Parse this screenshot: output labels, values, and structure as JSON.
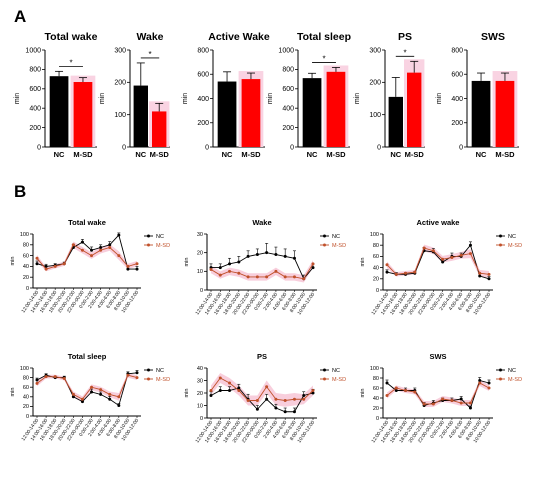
{
  "panels": {
    "a": "A",
    "b": "B"
  },
  "colors": {
    "nc": "#000000",
    "msd": "#ff0000",
    "msd_line": "#c0502a",
    "msd_band": "#f7c6d6",
    "msd_pale": "#f9d3e2"
  },
  "bar_categories": [
    "NC",
    "M-SD"
  ],
  "time_labels": [
    "12:00-14:00",
    "14:00-16:00",
    "16:00-18:00",
    "18:00-20:00",
    "20:00-22:00",
    "22:00-00:00",
    "0:00-2:00",
    "2:00-4:00",
    "4:00-6:00",
    "6:00-8:00",
    "8:00-10:00",
    "10:00-12:00"
  ],
  "chart_data": [
    {
      "type": "bar",
      "title": "Total wake",
      "ylabel": "min",
      "ylim": [
        0,
        1000
      ],
      "ticks": [
        0,
        200,
        400,
        600,
        800,
        1000
      ],
      "categories": [
        "NC",
        "M-SD"
      ],
      "values": [
        730,
        670
      ],
      "errors": [
        50,
        45
      ],
      "significance": "*"
    },
    {
      "type": "bar",
      "title": "Wake",
      "ylabel": "min",
      "ylim": [
        0,
        300
      ],
      "ticks": [
        0,
        100,
        200,
        300
      ],
      "categories": [
        "NC",
        "M-SD"
      ],
      "values": [
        190,
        110
      ],
      "errors": [
        70,
        25
      ],
      "significance": "*"
    },
    {
      "type": "bar",
      "title": "Active Wake",
      "ylabel": "min",
      "ylim": [
        0,
        800
      ],
      "ticks": [
        0,
        200,
        400,
        600,
        800
      ],
      "categories": [
        "NC",
        "M-SD"
      ],
      "values": [
        540,
        560
      ],
      "errors": [
        80,
        50
      ],
      "significance": ""
    },
    {
      "type": "bar",
      "title": "Total sleep",
      "ylabel": "min",
      "ylim": [
        0,
        1000
      ],
      "ticks": [
        0,
        200,
        400,
        600,
        800,
        1000
      ],
      "categories": [
        "NC",
        "M-SD"
      ],
      "values": [
        710,
        775
      ],
      "errors": [
        50,
        45
      ],
      "significance": "*"
    },
    {
      "type": "bar",
      "title": "PS",
      "ylabel": "min",
      "ylim": [
        0,
        300
      ],
      "ticks": [
        0,
        100,
        200,
        300
      ],
      "categories": [
        "NC",
        "M-SD"
      ],
      "values": [
        155,
        230
      ],
      "errors": [
        60,
        35
      ],
      "significance": "*"
    },
    {
      "type": "bar",
      "title": "SWS",
      "ylabel": "min",
      "ylim": [
        0,
        800
      ],
      "ticks": [
        0,
        200,
        400,
        600,
        800
      ],
      "categories": [
        "NC",
        "M-SD"
      ],
      "values": [
        545,
        545
      ],
      "errors": [
        65,
        65
      ],
      "significance": ""
    },
    {
      "type": "line",
      "title": "Total wake",
      "ylabel": "min",
      "ylim": [
        0,
        100
      ],
      "ticks": [
        0,
        20,
        40,
        60,
        80,
        100
      ],
      "legend": "top-right",
      "series": [
        {
          "name": "NC",
          "values": [
            45,
            40,
            42,
            45,
            75,
            85,
            70,
            75,
            80,
            98,
            35,
            35
          ],
          "errors": [
            5,
            4,
            3,
            3,
            6,
            5,
            6,
            5,
            6,
            4,
            4,
            5
          ]
        },
        {
          "name": "M-SD",
          "values": [
            55,
            35,
            40,
            45,
            80,
            70,
            60,
            70,
            75,
            60,
            40,
            45
          ],
          "errors": [
            6,
            4,
            4,
            4,
            6,
            6,
            6,
            6,
            6,
            8,
            5,
            5
          ]
        }
      ]
    },
    {
      "type": "line",
      "title": "Wake",
      "ylabel": "min",
      "ylim": [
        0,
        30
      ],
      "ticks": [
        0,
        10,
        20,
        30
      ],
      "legend": "top-right",
      "series": [
        {
          "name": "NC",
          "values": [
            12,
            12,
            14,
            15,
            18,
            19,
            20,
            19,
            18,
            17,
            6,
            12
          ],
          "errors": [
            2,
            2,
            3,
            3,
            3,
            3,
            5,
            4,
            4,
            4,
            2,
            2
          ]
        },
        {
          "name": "M-SD",
          "values": [
            11,
            8,
            10,
            9,
            7,
            7,
            7,
            10,
            7,
            7,
            6,
            14
          ],
          "errors": [
            2,
            2,
            2,
            2,
            2,
            2,
            2,
            2,
            2,
            2,
            2,
            2
          ]
        }
      ]
    },
    {
      "type": "line",
      "title": "Active wake",
      "ylabel": "min",
      "ylim": [
        0,
        100
      ],
      "ticks": [
        0,
        20,
        40,
        60,
        80,
        100
      ],
      "legend": "top-right",
      "series": [
        {
          "name": "NC",
          "values": [
            32,
            28,
            28,
            30,
            70,
            68,
            50,
            60,
            60,
            80,
            25,
            20
          ],
          "errors": [
            4,
            3,
            3,
            3,
            6,
            6,
            5,
            6,
            6,
            6,
            4,
            4
          ]
        },
        {
          "name": "M-SD",
          "values": [
            45,
            28,
            30,
            32,
            75,
            70,
            55,
            58,
            62,
            65,
            30,
            28
          ],
          "errors": [
            6,
            4,
            4,
            4,
            6,
            6,
            6,
            6,
            6,
            8,
            6,
            6
          ]
        }
      ]
    },
    {
      "type": "line",
      "title": "Total sleep",
      "ylabel": "min",
      "ylim": [
        0,
        100
      ],
      "ticks": [
        0,
        20,
        40,
        60,
        80,
        100
      ],
      "legend": "top-right",
      "series": [
        {
          "name": "NC",
          "values": [
            75,
            85,
            80,
            80,
            40,
            30,
            50,
            45,
            35,
            22,
            88,
            90
          ],
          "errors": [
            4,
            3,
            3,
            3,
            6,
            5,
            6,
            5,
            6,
            4,
            4,
            5
          ]
        },
        {
          "name": "M-SD",
          "values": [
            68,
            82,
            82,
            78,
            45,
            35,
            60,
            55,
            45,
            40,
            85,
            80
          ],
          "errors": [
            6,
            4,
            4,
            4,
            6,
            6,
            6,
            6,
            6,
            8,
            5,
            5
          ]
        }
      ]
    },
    {
      "type": "line",
      "title": "PS",
      "ylabel": "min",
      "ylim": [
        0,
        40
      ],
      "ticks": [
        0,
        10,
        20,
        30,
        40
      ],
      "legend": "top-right",
      "series": [
        {
          "name": "NC",
          "values": [
            18,
            22,
            22,
            24,
            15,
            7,
            15,
            8,
            5,
            5,
            18,
            20
          ],
          "errors": [
            3,
            3,
            3,
            3,
            4,
            3,
            4,
            3,
            3,
            3,
            3,
            3
          ]
        },
        {
          "name": "M-SD",
          "values": [
            22,
            32,
            28,
            22,
            14,
            14,
            25,
            15,
            14,
            15,
            15,
            22
          ],
          "errors": [
            4,
            4,
            4,
            4,
            4,
            4,
            5,
            5,
            5,
            5,
            4,
            4
          ]
        }
      ]
    },
    {
      "type": "line",
      "title": "SWS",
      "ylabel": "min",
      "ylim": [
        0,
        100
      ],
      "ticks": [
        0,
        20,
        40,
        60,
        80,
        100
      ],
      "legend": "top-right",
      "series": [
        {
          "name": "NC",
          "values": [
            70,
            55,
            55,
            55,
            25,
            30,
            35,
            35,
            38,
            20,
            75,
            70
          ],
          "errors": [
            6,
            5,
            5,
            5,
            6,
            5,
            5,
            5,
            5,
            4,
            6,
            6
          ]
        },
        {
          "name": "M-SD",
          "values": [
            45,
            60,
            55,
            52,
            28,
            28,
            38,
            35,
            30,
            30,
            70,
            60
          ],
          "errors": [
            6,
            5,
            5,
            5,
            6,
            6,
            6,
            6,
            6,
            6,
            6,
            6
          ]
        }
      ]
    }
  ]
}
